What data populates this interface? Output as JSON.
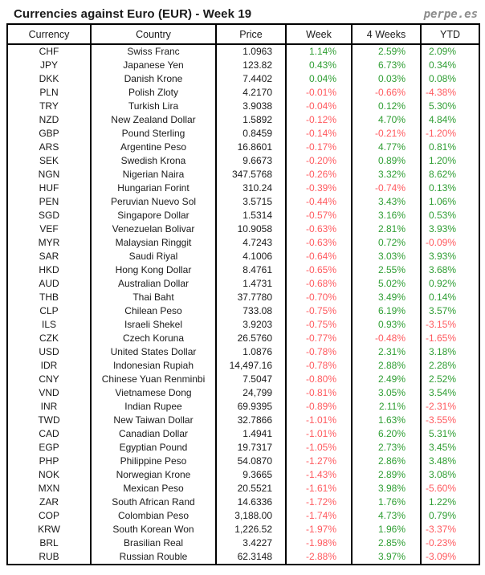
{
  "page": {
    "title": "Currencies against Euro (EUR) - Week 19",
    "brand": "perpe.es"
  },
  "colors": {
    "positive": "#2f9e33",
    "negative": "#ff5a5f",
    "text": "#1a1a1a",
    "brand": "#8c8c8c",
    "border": "#000000",
    "background": "#ffffff"
  },
  "chart_data": {
    "type": "table",
    "title": "Currencies against Euro (EUR) - Week 19",
    "columns": [
      "Currency",
      "Country",
      "Price",
      "Week",
      "4 Weeks",
      "YTD"
    ],
    "rows": [
      [
        "CHF",
        "Swiss Franc",
        "1.0963",
        "1.14%",
        "2.59%",
        "2.09%"
      ],
      [
        "JPY",
        "Japanese Yen",
        "123.82",
        "0.43%",
        "6.73%",
        "0.34%"
      ],
      [
        "DKK",
        "Danish Krone",
        "7.4402",
        "0.04%",
        "0.03%",
        "0.08%"
      ],
      [
        "PLN",
        "Polish Zloty",
        "4.2170",
        "-0.01%",
        "-0.66%",
        "-4.38%"
      ],
      [
        "TRY",
        "Turkish Lira",
        "3.9038",
        "-0.04%",
        "0.12%",
        "5.30%"
      ],
      [
        "NZD",
        "New Zealand Dollar",
        "1.5892",
        "-0.12%",
        "4.70%",
        "4.84%"
      ],
      [
        "GBP",
        "Pound Sterling",
        "0.8459",
        "-0.14%",
        "-0.21%",
        "-1.20%"
      ],
      [
        "ARS",
        "Argentine Peso",
        "16.8601",
        "-0.17%",
        "4.77%",
        "0.81%"
      ],
      [
        "SEK",
        "Swedish Krona",
        "9.6673",
        "-0.20%",
        "0.89%",
        "1.20%"
      ],
      [
        "NGN",
        "Nigerian Naira",
        "347.5768",
        "-0.26%",
        "3.32%",
        "8.62%"
      ],
      [
        "HUF",
        "Hungarian Forint",
        "310.24",
        "-0.39%",
        "-0.74%",
        "0.13%"
      ],
      [
        "PEN",
        "Peruvian Nuevo Sol",
        "3.5715",
        "-0.44%",
        "3.43%",
        "1.06%"
      ],
      [
        "SGD",
        "Singapore Dollar",
        "1.5314",
        "-0.57%",
        "3.16%",
        "0.53%"
      ],
      [
        "VEF",
        "Venezuelan Bolivar",
        "10.9058",
        "-0.63%",
        "2.81%",
        "3.93%"
      ],
      [
        "MYR",
        "Malaysian Ringgit",
        "4.7243",
        "-0.63%",
        "0.72%",
        "-0.09%"
      ],
      [
        "SAR",
        "Saudi Riyal",
        "4.1006",
        "-0.64%",
        "3.03%",
        "3.93%"
      ],
      [
        "HKD",
        "Hong Kong Dollar",
        "8.4761",
        "-0.65%",
        "2.55%",
        "3.68%"
      ],
      [
        "AUD",
        "Australian Dollar",
        "1.4731",
        "-0.68%",
        "5.02%",
        "0.92%"
      ],
      [
        "THB",
        "Thai Baht",
        "37.7780",
        "-0.70%",
        "3.49%",
        "0.14%"
      ],
      [
        "CLP",
        "Chilean Peso",
        "733.08",
        "-0.75%",
        "6.19%",
        "3.57%"
      ],
      [
        "ILS",
        "Israeli Shekel",
        "3.9203",
        "-0.75%",
        "0.93%",
        "-3.15%"
      ],
      [
        "CZK",
        "Czech Koruna",
        "26.5760",
        "-0.77%",
        "-0.48%",
        "-1.65%"
      ],
      [
        "USD",
        "United States Dollar",
        "1.0876",
        "-0.78%",
        "2.31%",
        "3.18%"
      ],
      [
        "IDR",
        "Indonesian Rupiah",
        "14,497.16",
        "-0.78%",
        "2.88%",
        "2.28%"
      ],
      [
        "CNY",
        "Chinese Yuan Renminbi",
        "7.5047",
        "-0.80%",
        "2.49%",
        "2.52%"
      ],
      [
        "VND",
        "Vietnamese Dong",
        "24,799",
        "-0.81%",
        "3.05%",
        "3.54%"
      ],
      [
        "INR",
        "Indian Rupee",
        "69.9395",
        "-0.89%",
        "2.11%",
        "-2.31%"
      ],
      [
        "TWD",
        "New Taiwan Dollar",
        "32.7866",
        "-1.01%",
        "1.63%",
        "-3.55%"
      ],
      [
        "CAD",
        "Canadian Dollar",
        "1.4941",
        "-1.01%",
        "6.20%",
        "5.31%"
      ],
      [
        "EGP",
        "Egyptian Pound",
        "19.7317",
        "-1.05%",
        "2.73%",
        "3.45%"
      ],
      [
        "PHP",
        "Philippine Peso",
        "54.0870",
        "-1.27%",
        "2.86%",
        "3.48%"
      ],
      [
        "NOK",
        "Norwegian Krone",
        "9.3665",
        "-1.43%",
        "2.89%",
        "3.08%"
      ],
      [
        "MXN",
        "Mexican Peso",
        "20.5521",
        "-1.61%",
        "3.98%",
        "-5.60%"
      ],
      [
        "ZAR",
        "South African Rand",
        "14.6336",
        "-1.72%",
        "1.76%",
        "1.22%"
      ],
      [
        "COP",
        "Colombian Peso",
        "3,188.00",
        "-1.74%",
        "4.73%",
        "0.79%"
      ],
      [
        "KRW",
        "South Korean Won",
        "1,226.52",
        "-1.97%",
        "1.96%",
        "-3.37%"
      ],
      [
        "BRL",
        "Brasilian Real",
        "3.4227",
        "-1.98%",
        "2.85%",
        "-0.23%"
      ],
      [
        "RUB",
        "Russian Rouble",
        "62.3148",
        "-2.88%",
        "3.97%",
        "-3.09%"
      ]
    ]
  }
}
